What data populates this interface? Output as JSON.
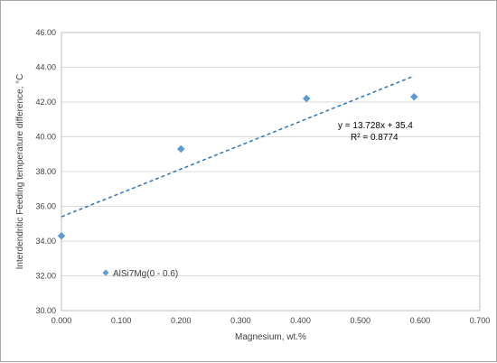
{
  "chart_data": {
    "type": "scatter",
    "title": "",
    "xlabel": "Magnesium, wt.%",
    "ylabel": "Interdendritic Feeding  temperature difference, °C",
    "xlim": [
      0,
      0.7
    ],
    "ylim": [
      30,
      46
    ],
    "x_ticks": [
      "0.000",
      "0.100",
      "0.200",
      "0.300",
      "0.400",
      "0.500",
      "0.600",
      "0.700"
    ],
    "y_ticks": [
      "30.00",
      "32.00",
      "34.00",
      "36.00",
      "38.00",
      "40.00",
      "42.00",
      "44.00",
      "46.00"
    ],
    "grid": {
      "horizontal": true,
      "vertical": false
    },
    "series": [
      {
        "name": "AlSi7Mg(0 - 0.6)",
        "x": [
          0.0,
          0.2,
          0.41,
          0.59
        ],
        "y": [
          34.3,
          39.3,
          42.2,
          42.3
        ],
        "color": "#5b9bd5",
        "marker": "diamond"
      }
    ],
    "trendline": {
      "type": "linear",
      "slope": 13.728,
      "intercept": 35.4,
      "x_range": [
        0,
        0.59
      ],
      "equation": "y = 13.728x + 35.4",
      "r_squared": "R² = 0.8774",
      "color": "#2e75b6",
      "style": "dashed"
    },
    "legend": {
      "position": "bottom-left",
      "entries": [
        "AlSi7Mg(0 - 0.6)"
      ]
    }
  }
}
